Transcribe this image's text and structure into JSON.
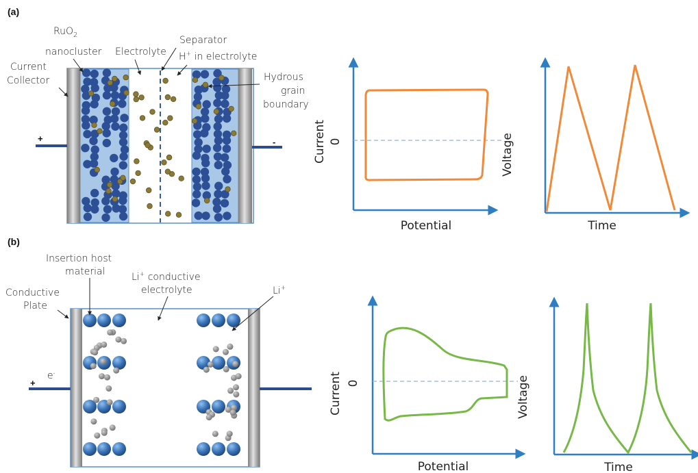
{
  "colors": {
    "axis": "#2f7ec1",
    "orange": "#f08a3a",
    "green": "#78b848",
    "zero_line": "#8fb3d9",
    "electrode_fill": "#a9c8e8",
    "electrode_edge": "#5b8fc7",
    "nanocluster": "#2d4f96",
    "proton": "#8a7a3a",
    "li_ion": "#8d8d8d",
    "host_sphere": "#3b74b8",
    "wire": "#2c4c8c",
    "collector": "#a8a8a8"
  },
  "panel_a": {
    "label": "(a)",
    "labels": {
      "ruo2_line1": "RuO",
      "ruo2_sub": "2",
      "ruo2_line2": "nanocluster",
      "current_collector_1": "Current",
      "current_collector_2": "Collector",
      "electrolyte": "Electrolyte",
      "separator": "Separator",
      "h_ion_base": "H",
      "h_ion_sup": "+",
      "h_ion_rest": " in electrolyte",
      "hydrous_1": "Hydrous",
      "hydrous_2": "grain",
      "hydrous_3": "boundary",
      "plus": "+",
      "minus": "-"
    },
    "cv_plot": {
      "ylabel": "Current",
      "xlabel": "Potential",
      "zero": "0"
    },
    "gcd_plot": {
      "ylabel": "Voltage",
      "xlabel": "Time"
    }
  },
  "panel_b": {
    "label": "(b)",
    "labels": {
      "insertion_1": "Insertion host",
      "insertion_2": "material",
      "li_electrolyte_base": "Li",
      "li_electrolyte_sup": "+",
      "li_electrolyte_rest": " conductive",
      "li_electrolyte_2": "electrolyte",
      "li_ion_base": "Li",
      "li_ion_sup": "+",
      "conductive_1": "Conductive",
      "conductive_2": "Plate",
      "plus": "+",
      "electron_base": "e",
      "electron_sup": "-"
    },
    "cv_plot": {
      "ylabel": "Current",
      "xlabel": "Potential",
      "zero": "0"
    },
    "gcd_plot": {
      "ylabel": "Voltage",
      "xlabel": "Time"
    }
  }
}
